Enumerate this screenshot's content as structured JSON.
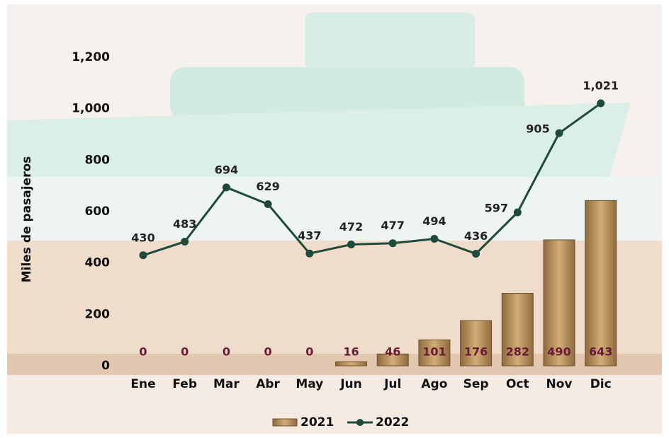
{
  "chart_data": {
    "type": "bar",
    "y_label": "Miles de pasajeros",
    "categories": [
      "Ene",
      "Feb",
      "Mar",
      "Abr",
      "May",
      "Jun",
      "Jul",
      "Ago",
      "Sep",
      "Oct",
      "Nov",
      "Dic"
    ],
    "series": [
      {
        "name": "2021",
        "type": "bar",
        "color": "#b8925c",
        "values": [
          0,
          0,
          0,
          0,
          0,
          16,
          46,
          101,
          176,
          282,
          490,
          643
        ]
      },
      {
        "name": "2022",
        "type": "line",
        "color": "#1f4a3a",
        "values": [
          430,
          483,
          694,
          629,
          437,
          472,
          477,
          494,
          436,
          597,
          905,
          1021
        ],
        "value_labels": [
          "430",
          "483",
          "694",
          "629",
          "437",
          "472",
          "477",
          "494",
          "436",
          "597",
          "905",
          "1,021"
        ]
      }
    ],
    "ylim": [
      0,
      1200
    ],
    "yticks": [
      0,
      200,
      400,
      600,
      800,
      {
        "value": 1000,
        "label": "1,000"
      },
      {
        "value": 1200,
        "label": "1,200"
      }
    ],
    "grid": false,
    "legend": "bottom"
  }
}
